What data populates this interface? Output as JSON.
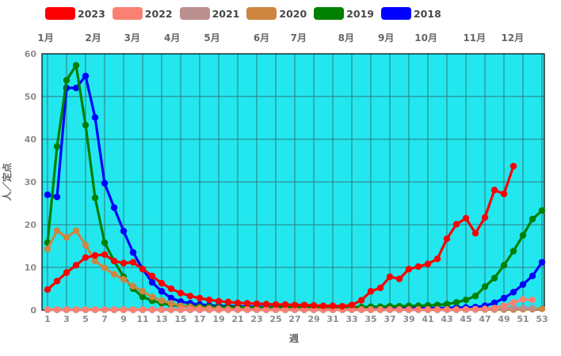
{
  "chart_data": {
    "type": "line",
    "title": "",
    "xlabel": "週",
    "ylabel": "人／定点",
    "x_unit": "week",
    "x_min": 1,
    "x_max": 53,
    "x_tick_step": 2,
    "ylim": [
      0,
      60
    ],
    "y_tick_step": 10,
    "grid": true,
    "legend_position": "top",
    "plot_bg": "#22e7ef",
    "grid_color": "#2d7a7a",
    "border_color": "#000000",
    "tick_color": "#8c8c8c",
    "axis_title_color": "#666666",
    "month_axis": {
      "labels": [
        "1月",
        "2月",
        "3月",
        "4月",
        "5月",
        "6月",
        "7月",
        "8月",
        "9月",
        "10月",
        "11月",
        "12月"
      ],
      "week_positions": [
        0.8,
        5.8,
        9.9,
        14.1,
        18.3,
        23.5,
        27.4,
        32.4,
        36.6,
        40.8,
        45.9,
        49.9
      ]
    },
    "series": [
      {
        "name": "2023",
        "color": "#fa0000",
        "values": [
          4.8,
          6.8,
          8.8,
          10.5,
          12.3,
          12.8,
          13.0,
          11.5,
          11.0,
          11.2,
          9.6,
          8.0,
          6.3,
          5.0,
          4.0,
          3.3,
          2.8,
          2.4,
          2.1,
          1.9,
          1.7,
          1.6,
          1.5,
          1.4,
          1.3,
          1.3,
          1.2,
          1.2,
          1.1,
          1.0,
          1.0,
          0.9,
          1.2,
          2.3,
          4.4,
          5.2,
          7.8,
          7.3,
          9.6,
          10.2,
          10.8,
          12.0,
          16.7,
          20.1,
          21.5,
          18.0,
          21.7,
          28.1,
          27.2,
          33.7,
          null,
          null,
          null
        ]
      },
      {
        "name": "2022",
        "color": "#fa8072",
        "values": [
          0.15,
          0.15,
          0.15,
          0.15,
          0.15,
          0.15,
          0.15,
          0.15,
          0.15,
          0.15,
          0.15,
          0.15,
          0.15,
          0.15,
          0.15,
          0.15,
          0.15,
          0.15,
          0.15,
          0.15,
          0.15,
          0.15,
          0.15,
          0.15,
          0.15,
          0.15,
          0.15,
          0.15,
          0.15,
          0.15,
          0.15,
          0.15,
          0.15,
          0.15,
          0.15,
          0.15,
          0.15,
          0.15,
          0.15,
          0.15,
          0.15,
          0.15,
          0.15,
          0.15,
          0.2,
          0.25,
          0.3,
          0.5,
          1.0,
          1.8,
          2.5,
          2.4,
          null
        ]
      },
      {
        "name": "2021",
        "color": "#bc8f8f",
        "values": [
          0.05,
          0.05,
          0.05,
          0.05,
          0.05,
          0.05,
          0.05,
          0.05,
          0.05,
          0.05,
          0.05,
          0.05,
          0.05,
          0.05,
          0.05,
          0.05,
          0.05,
          0.05,
          0.05,
          0.05,
          0.05,
          0.05,
          0.05,
          0.05,
          0.05,
          0.05,
          0.05,
          0.05,
          0.05,
          0.05,
          0.05,
          0.05,
          0.05,
          0.05,
          0.05,
          0.05,
          0.05,
          0.05,
          0.05,
          0.05,
          0.05,
          0.05,
          0.05,
          0.05,
          0.1,
          0.1,
          0.15,
          0.25,
          0.4,
          0.55,
          0.5,
          0.5,
          null
        ]
      },
      {
        "name": "2020",
        "color": "#cd853f",
        "values": [
          14.3,
          18.6,
          17.0,
          18.6,
          15.2,
          11.5,
          9.9,
          8.4,
          7.2,
          5.6,
          4.4,
          3.1,
          2.2,
          1.6,
          1.0,
          0.7,
          0.5,
          0.4,
          0.3,
          0.2,
          0.2,
          0.2,
          0.1,
          0.1,
          0.1,
          0.1,
          0.1,
          0.1,
          0.1,
          0.1,
          0.1,
          0.1,
          0.1,
          0.1,
          0.1,
          0.1,
          0.1,
          0.1,
          0.1,
          0.1,
          0.1,
          0.1,
          0.1,
          0.1,
          0.1,
          0.1,
          0.1,
          0.1,
          0.1,
          0.1,
          0.2,
          0.2,
          0.3
        ]
      },
      {
        "name": "2019",
        "color": "#008000",
        "values": [
          15.8,
          38.3,
          53.8,
          57.3,
          43.3,
          26.3,
          15.8,
          11.5,
          7.8,
          5.0,
          3.1,
          2.2,
          1.6,
          1.2,
          1.0,
          0.9,
          0.8,
          0.8,
          0.7,
          0.7,
          0.7,
          0.6,
          0.6,
          0.6,
          0.6,
          0.6,
          0.6,
          0.6,
          0.6,
          0.6,
          0.6,
          0.6,
          0.7,
          0.7,
          0.8,
          0.8,
          0.9,
          0.9,
          1.0,
          1.0,
          1.1,
          1.2,
          1.4,
          1.8,
          2.4,
          3.3,
          5.5,
          7.5,
          10.5,
          13.8,
          17.5,
          21.3,
          23.3
        ]
      },
      {
        "name": "2018",
        "color": "#0000ff",
        "values": [
          27.0,
          26.5,
          52.0,
          52.0,
          54.8,
          45.1,
          29.7,
          24.0,
          18.5,
          13.5,
          9.6,
          6.5,
          4.4,
          2.8,
          2.0,
          1.6,
          1.3,
          1.1,
          1.0,
          0.9,
          0.9,
          0.8,
          0.8,
          0.7,
          0.7,
          0.7,
          0.6,
          0.6,
          0.6,
          0.6,
          0.5,
          0.5,
          0.5,
          0.5,
          0.5,
          0.5,
          0.5,
          0.5,
          0.5,
          0.5,
          0.5,
          0.5,
          0.5,
          0.6,
          0.6,
          0.7,
          1.0,
          1.7,
          2.8,
          4.2,
          6.0,
          8.0,
          11.2
        ]
      }
    ]
  }
}
